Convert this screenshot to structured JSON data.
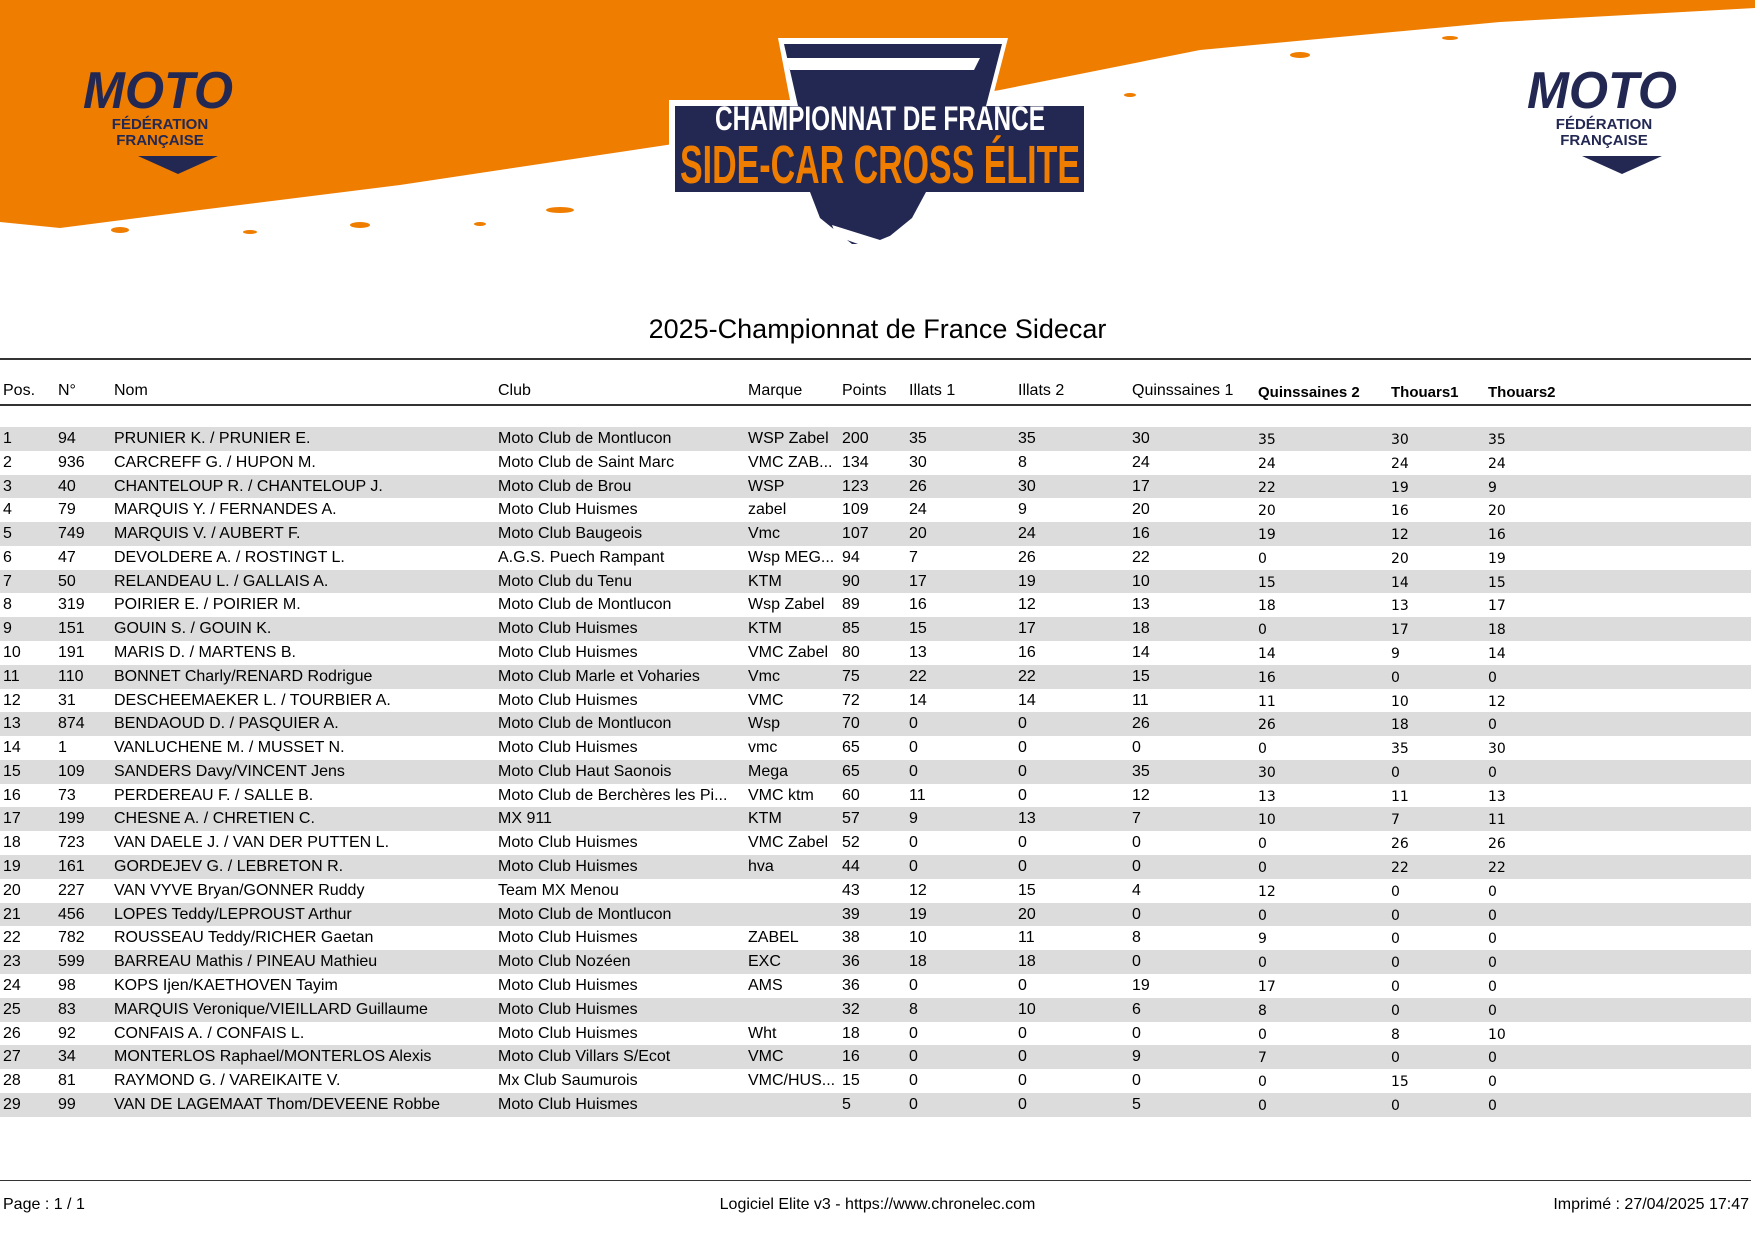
{
  "header": {
    "logo_left": "MOTO FÉDÉRATION FRANÇAISE",
    "logo_right": "MOTO FÉDÉRATION FRANÇAISE",
    "badge_line1": "CHAMPIONNAT DE FRANCE",
    "badge_line2": "SIDE-CAR CROSS ÉLITE",
    "colors": {
      "orange": "#ef7d00",
      "navy": "#232852"
    }
  },
  "title": "2025-Championnat de France Sidecar",
  "columns": [
    "Pos.",
    "N°",
    "Nom",
    "Club",
    "Marque",
    "Points",
    "Illats 1",
    "Illats 2",
    "Quinssaines 1",
    "Quinssaines 2",
    "Thouars1",
    "Thouars2"
  ],
  "rows": [
    [
      "1",
      "94",
      "PRUNIER K. / PRUNIER E.",
      "Moto Club de Montlucon",
      "WSP Zabel",
      "200",
      "35",
      "35",
      "30",
      "35",
      "30",
      "35"
    ],
    [
      "2",
      "936",
      "CARCREFF G. / HUPON M.",
      "Moto Club de Saint Marc",
      "VMC ZAB...",
      "134",
      "30",
      "8",
      "24",
      "24",
      "24",
      "24"
    ],
    [
      "3",
      "40",
      "CHANTELOUP R. / CHANTELOUP J.",
      "Moto Club de Brou",
      "WSP",
      "123",
      "26",
      "30",
      "17",
      "22",
      "19",
      "9"
    ],
    [
      "4",
      "79",
      "MARQUIS Y. / FERNANDES A.",
      "Moto Club Huismes",
      "zabel",
      "109",
      "24",
      "9",
      "20",
      "20",
      "16",
      "20"
    ],
    [
      "5",
      "749",
      "MARQUIS V. / AUBERT F.",
      "Moto Club Baugeois",
      "Vmc",
      "107",
      "20",
      "24",
      "16",
      "19",
      "12",
      "16"
    ],
    [
      "6",
      "47",
      "DEVOLDERE A. / ROSTINGT L.",
      "A.G.S. Puech Rampant",
      "Wsp MEG...",
      "94",
      "7",
      "26",
      "22",
      "0",
      "20",
      "19"
    ],
    [
      "7",
      "50",
      "RELANDEAU L. / GALLAIS A.",
      "Moto Club du Tenu",
      "KTM",
      "90",
      "17",
      "19",
      "10",
      "15",
      "14",
      "15"
    ],
    [
      "8",
      "319",
      "POIRIER E. / POIRIER M.",
      "Moto Club de Montlucon",
      "Wsp Zabel",
      "89",
      "16",
      "12",
      "13",
      "18",
      "13",
      "17"
    ],
    [
      "9",
      "151",
      "GOUIN S. / GOUIN K.",
      "Moto Club Huismes",
      "KTM",
      "85",
      "15",
      "17",
      "18",
      "0",
      "17",
      "18"
    ],
    [
      "10",
      "191",
      "MARIS D. / MARTENS B.",
      "Moto Club Huismes",
      "VMC Zabel",
      "80",
      "13",
      "16",
      "14",
      "14",
      "9",
      "14"
    ],
    [
      "11",
      "110",
      "BONNET Charly/RENARD Rodrigue",
      "Moto Club Marle et Voharies",
      "Vmc",
      "75",
      "22",
      "22",
      "15",
      "16",
      "0",
      "0"
    ],
    [
      "12",
      "31",
      "DESCHEEMAEKER L. / TOURBIER A.",
      "Moto Club Huismes",
      "VMC",
      "72",
      "14",
      "14",
      "11",
      "11",
      "10",
      "12"
    ],
    [
      "13",
      "874",
      "BENDAOUD D. / PASQUIER A.",
      "Moto Club de Montlucon",
      "Wsp",
      "70",
      "0",
      "0",
      "26",
      "26",
      "18",
      "0"
    ],
    [
      "14",
      "1",
      "VANLUCHENE M. / MUSSET N.",
      "Moto Club Huismes",
      "vmc",
      "65",
      "0",
      "0",
      "0",
      "0",
      "35",
      "30"
    ],
    [
      "15",
      "109",
      "SANDERS Davy/VINCENT Jens",
      "Moto Club Haut Saonois",
      "Mega",
      "65",
      "0",
      "0",
      "35",
      "30",
      "0",
      "0"
    ],
    [
      "16",
      "73",
      "PERDEREAU F. / SALLE B.",
      "Moto Club de Berchères les Pi...",
      "VMC ktm",
      "60",
      "11",
      "0",
      "12",
      "13",
      "11",
      "13"
    ],
    [
      "17",
      "199",
      "CHESNE A. / CHRETIEN C.",
      "MX 911",
      "KTM",
      "57",
      "9",
      "13",
      "7",
      "10",
      "7",
      "11"
    ],
    [
      "18",
      "723",
      "VAN DAELE J. / VAN DER PUTTEN L.",
      "Moto Club Huismes",
      "VMC Zabel",
      "52",
      "0",
      "0",
      "0",
      "0",
      "26",
      "26"
    ],
    [
      "19",
      "161",
      "GORDEJEV G. / LEBRETON R.",
      "Moto Club Huismes",
      "hva",
      "44",
      "0",
      "0",
      "0",
      "0",
      "22",
      "22"
    ],
    [
      "20",
      "227",
      "VAN VYVE Bryan/GONNER Ruddy",
      "Team MX Menou",
      "",
      "43",
      "12",
      "15",
      "4",
      "12",
      "0",
      "0"
    ],
    [
      "21",
      "456",
      "LOPES Teddy/LEPROUST Arthur",
      "Moto Club de Montlucon",
      "",
      "39",
      "19",
      "20",
      "0",
      "0",
      "0",
      "0"
    ],
    [
      "22",
      "782",
      "ROUSSEAU Teddy/RICHER Gaetan",
      "Moto Club Huismes",
      "ZABEL",
      "38",
      "10",
      "11",
      "8",
      "9",
      "0",
      "0"
    ],
    [
      "23",
      "599",
      "BARREAU Mathis / PINEAU Mathieu",
      "Moto Club Nozéen",
      "EXC",
      "36",
      "18",
      "18",
      "0",
      "0",
      "0",
      "0"
    ],
    [
      "24",
      "98",
      "KOPS Ijen/KAETHOVEN Tayim",
      "Moto Club Huismes",
      "AMS",
      "36",
      "0",
      "0",
      "19",
      "17",
      "0",
      "0"
    ],
    [
      "25",
      "83",
      "MARQUIS Veronique/VIEILLARD Guillaume",
      "Moto Club Huismes",
      "",
      "32",
      "8",
      "10",
      "6",
      "8",
      "0",
      "0"
    ],
    [
      "26",
      "92",
      "CONFAIS A. / CONFAIS L.",
      "Moto Club Huismes",
      "Wht",
      "18",
      "0",
      "0",
      "0",
      "0",
      "8",
      "10"
    ],
    [
      "27",
      "34",
      "MONTERLOS Raphael/MONTERLOS Alexis",
      "Moto Club Villars S/Ecot",
      "VMC",
      "16",
      "0",
      "0",
      "9",
      "7",
      "0",
      "0"
    ],
    [
      "28",
      "81",
      "RAYMOND G. / VAREIKAITE V.",
      "Mx Club Saumurois",
      "VMC/HUS...",
      "15",
      "0",
      "0",
      "0",
      "0",
      "15",
      "0"
    ],
    [
      "29",
      "99",
      "VAN DE LAGEMAAT Thom/DEVEENE Robbe",
      "Moto Club Huismes",
      "",
      "5",
      "0",
      "0",
      "5",
      "0",
      "0",
      "0"
    ]
  ],
  "footer": {
    "page": "Page : 1 / 1",
    "software": "Logiciel Elite v3 - https://www.chronelec.com",
    "printed": "Imprimé : 27/04/2025 17:47"
  }
}
